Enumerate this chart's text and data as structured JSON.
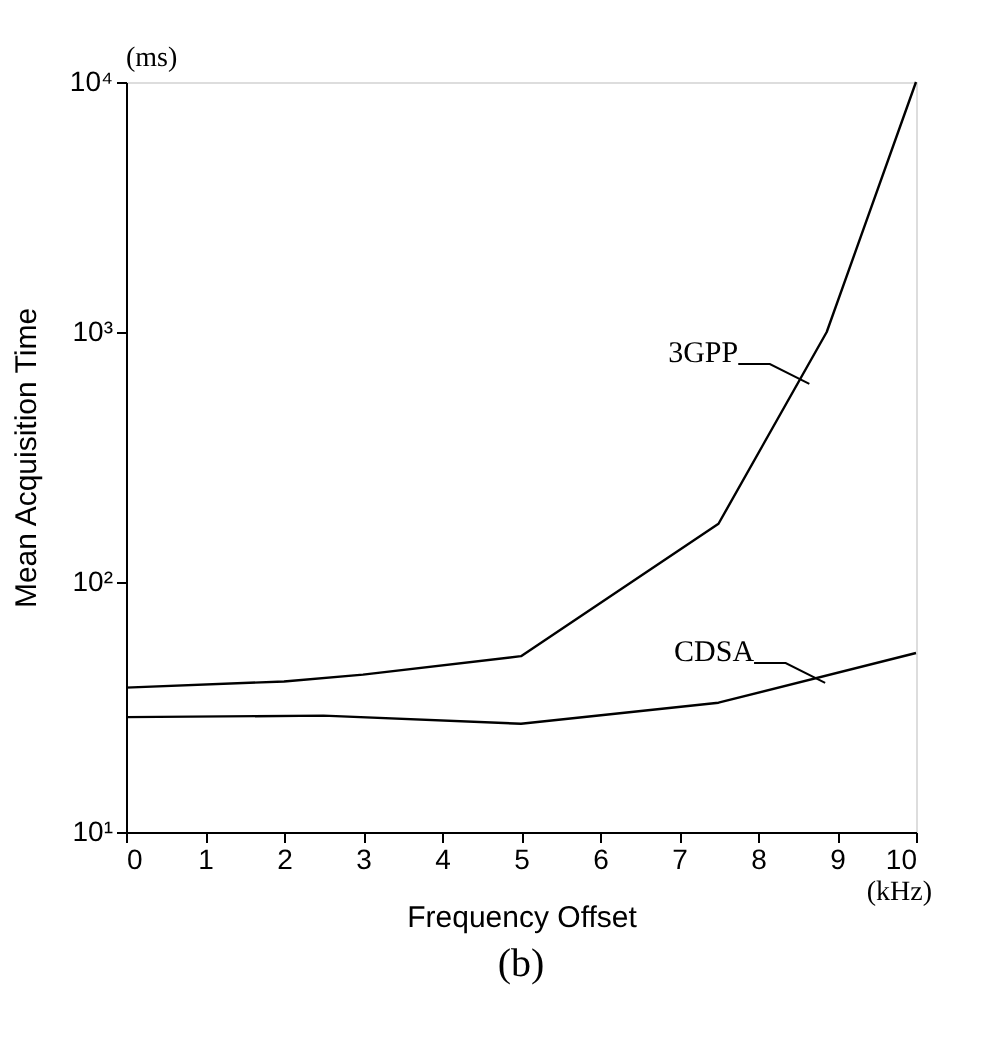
{
  "chart_data": {
    "type": "line",
    "title": "(b)",
    "xlabel": "Frequency Offset",
    "ylabel": "Mean Acquisition Time",
    "series": [
      {
        "name": "3GPP",
        "color": "#000000",
        "x": [
          0,
          2,
          3,
          5,
          7.5,
          8.87,
          10
        ],
        "values": [
          37.8,
          40,
          42.6,
          50.5,
          171,
          1000,
          10000
        ]
      },
      {
        "name": "CDSA",
        "color": "#000000",
        "x": [
          0,
          2.5,
          5,
          7.5,
          10
        ],
        "values": [
          28.8,
          29.2,
          27.1,
          32.9,
          52
        ]
      }
    ],
    "xlim": [
      0,
      10
    ],
    "xticks": [
      0,
      1,
      2,
      3,
      4,
      5,
      6,
      7,
      8,
      9,
      10
    ],
    "ylim": [
      10,
      10000
    ],
    "yticks": [
      {
        "value": 10,
        "label": "10¹"
      },
      {
        "value": 100,
        "label": "10²"
      },
      {
        "value": 1000,
        "label": "10³"
      },
      {
        "value": 10000,
        "label": "10⁴"
      }
    ],
    "log": "y",
    "grid": false,
    "legend": "right",
    "marker": "none",
    "line_style": "solid",
    "annotations": [
      "(ms)",
      "(kHz)"
    ]
  }
}
